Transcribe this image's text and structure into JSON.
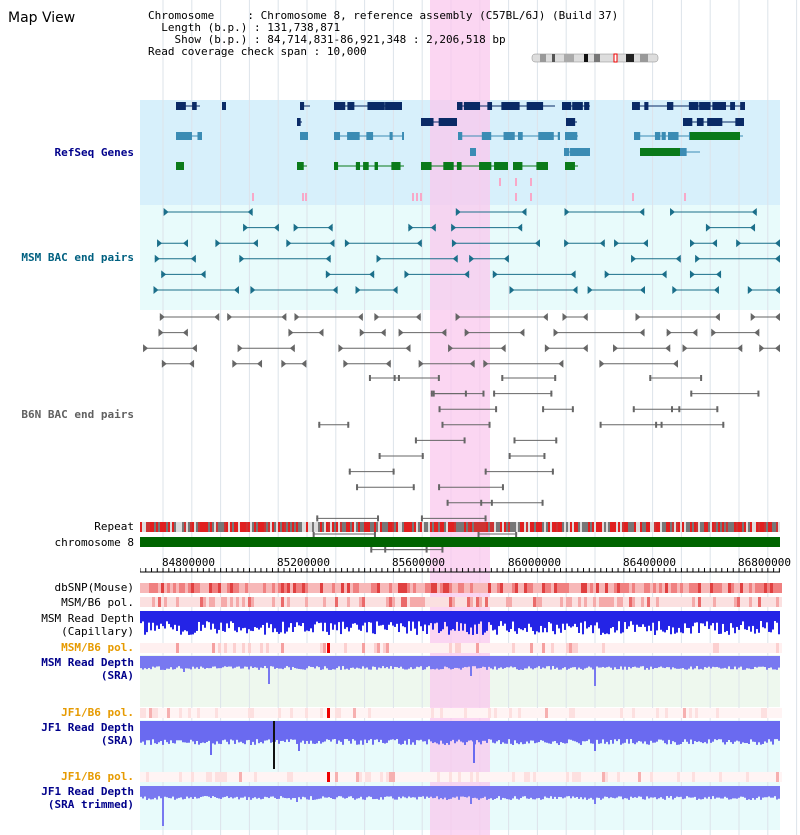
{
  "app": {
    "title": "Map View"
  },
  "info": {
    "chromosome_label": "Chromosome",
    "chromosome_value": "Chromosome 8, reference assembly (C57BL/6J) (Build 37)",
    "length_label": "Length (b.p.)",
    "length_value": "131,738,871",
    "show_label": "Show (b.p.)",
    "show_value": "84,714,831-86,921,348 : 2,206,518 bp",
    "coverage_label": "Read coverage check span",
    "coverage_value": "10,000"
  },
  "tracks": {
    "refseq": "RefSeq Genes",
    "msm_bac": "MSM BAC end pairs",
    "b6n_bac": "B6N BAC end pairs",
    "repeat": "Repeat",
    "chromosome": "chromosome 8",
    "dbsnp": "dbSNP(Mouse)",
    "msm_b6_pol_1": "MSM/B6 pol.",
    "msm_depth_cap_1": "MSM Read Depth",
    "msm_depth_cap_2": "(Capillary)",
    "msm_b6_pol_2": "MSM/B6 pol.",
    "msm_depth_sra_1": "MSM Read Depth",
    "msm_depth_sra_2": "(SRA)",
    "jf1_b6_pol_1": "JF1/B6 pol.",
    "jf1_depth_sra_1": "JF1 Read Depth",
    "jf1_depth_sra_2": "(SRA)",
    "jf1_b6_pol_2": "JF1/B6 pol.",
    "jf1_depth_trim_1": "JF1 Read Depth",
    "jf1_depth_trim_2": "(SRA trimmed)"
  },
  "axis": {
    "ticks": [
      "84800000",
      "85200000",
      "85600000",
      "86000000",
      "86400000",
      "86800000"
    ]
  },
  "colors": {
    "refseq_bg": "#d7f0fb",
    "bac_bg": "#e8fbfb",
    "highlight": "#f9c8ee",
    "label_blue": "#00008b",
    "label_teal": "#006080",
    "label_gray": "#606060",
    "label_orange": "#e69a00",
    "chromosome_green": "#006400",
    "depth_blue": "#2020e0",
    "depth_light": "#7a7af0"
  }
}
